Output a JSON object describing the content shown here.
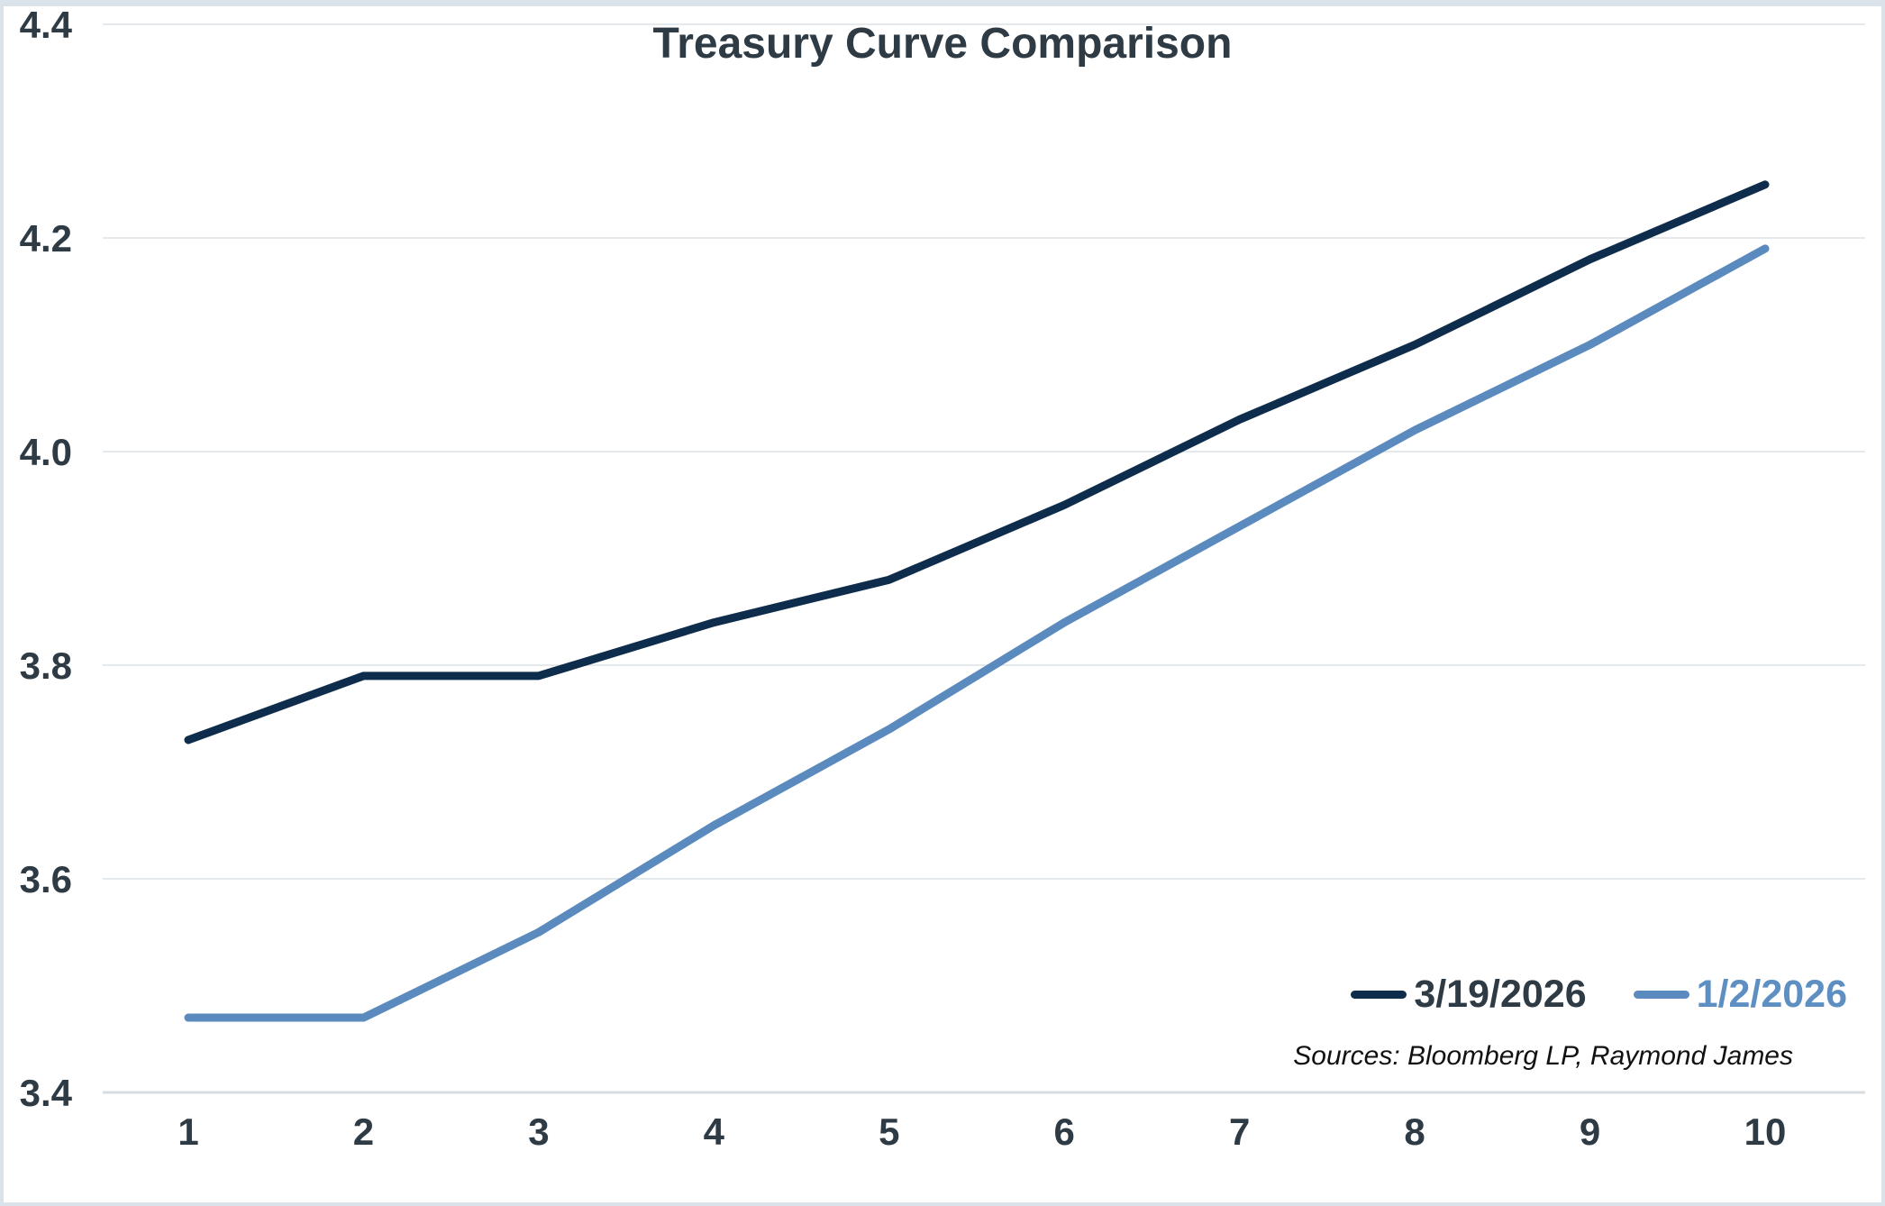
{
  "title": "Treasury Curve Comparison",
  "sources_note": "Sources: Bloomberg LP, Raymond James",
  "colors": {
    "series_dark": "#0e2c4b",
    "series_light": "#5b8bbe",
    "legend_label_light": "#5d8fc2",
    "text": "#2e3a44",
    "gridline": "#e3e9ed",
    "border": "#d9e3e9",
    "background": "#ffffff"
  },
  "chart_data": {
    "type": "line",
    "title": "Treasury Curve Comparison",
    "xlabel": "",
    "ylabel": "",
    "categories": [
      "1",
      "2",
      "3",
      "4",
      "5",
      "6",
      "7",
      "8",
      "9",
      "10"
    ],
    "series": [
      {
        "name": "3/19/2026",
        "color": "#0e2c4b",
        "values": [
          3.73,
          3.79,
          3.79,
          3.84,
          3.88,
          3.95,
          4.03,
          4.1,
          4.18,
          4.25
        ]
      },
      {
        "name": "1/2/2026",
        "color": "#5b8bbe",
        "values": [
          3.47,
          3.47,
          3.55,
          3.65,
          3.74,
          3.84,
          3.93,
          4.02,
          4.1,
          4.19
        ]
      }
    ],
    "ylim": [
      3.4,
      4.4
    ],
    "yticks": [
      3.4,
      3.6,
      3.8,
      4.0,
      4.2,
      4.4
    ],
    "ytick_format_decimals": 1,
    "grid": "horizontal",
    "legend_position": "bottom-right"
  }
}
